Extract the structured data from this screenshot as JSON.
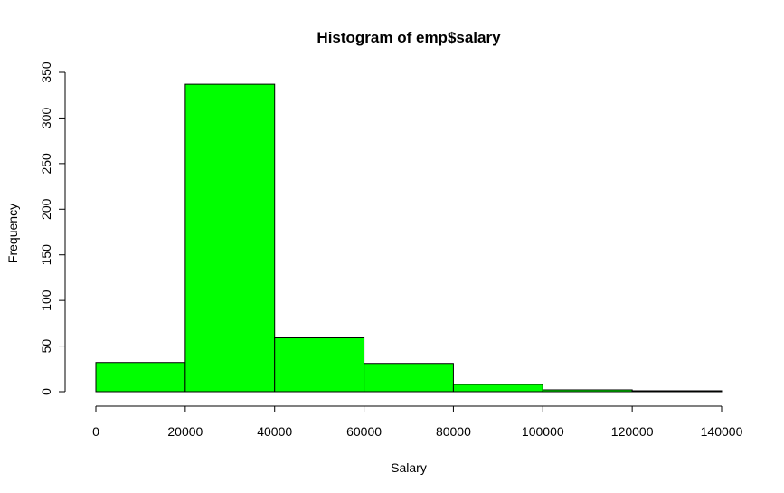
{
  "chart_data": {
    "type": "bar",
    "subtype": "histogram",
    "title": "Histogram of emp$salary",
    "xlabel": "Salary",
    "ylabel": "Frequency",
    "bin_edges": [
      0,
      20000,
      40000,
      60000,
      80000,
      100000,
      120000,
      140000
    ],
    "values": [
      32,
      337,
      59,
      31,
      8,
      2,
      1
    ],
    "xlim": [
      0,
      140000
    ],
    "ylim": [
      0,
      350
    ],
    "x_ticks": [
      0,
      20000,
      40000,
      60000,
      80000,
      100000,
      120000,
      140000
    ],
    "x_tick_labels": [
      "0",
      "20000",
      "40000",
      "60000",
      "80000",
      "100000",
      "120000",
      "140000"
    ],
    "y_ticks": [
      0,
      50,
      100,
      150,
      200,
      250,
      300,
      350
    ],
    "y_tick_labels": [
      "0",
      "50",
      "100",
      "150",
      "200",
      "250",
      "300",
      "350"
    ],
    "bar_color": "#00ff00",
    "edge_color": "#000000",
    "grid": false,
    "legend": false
  }
}
